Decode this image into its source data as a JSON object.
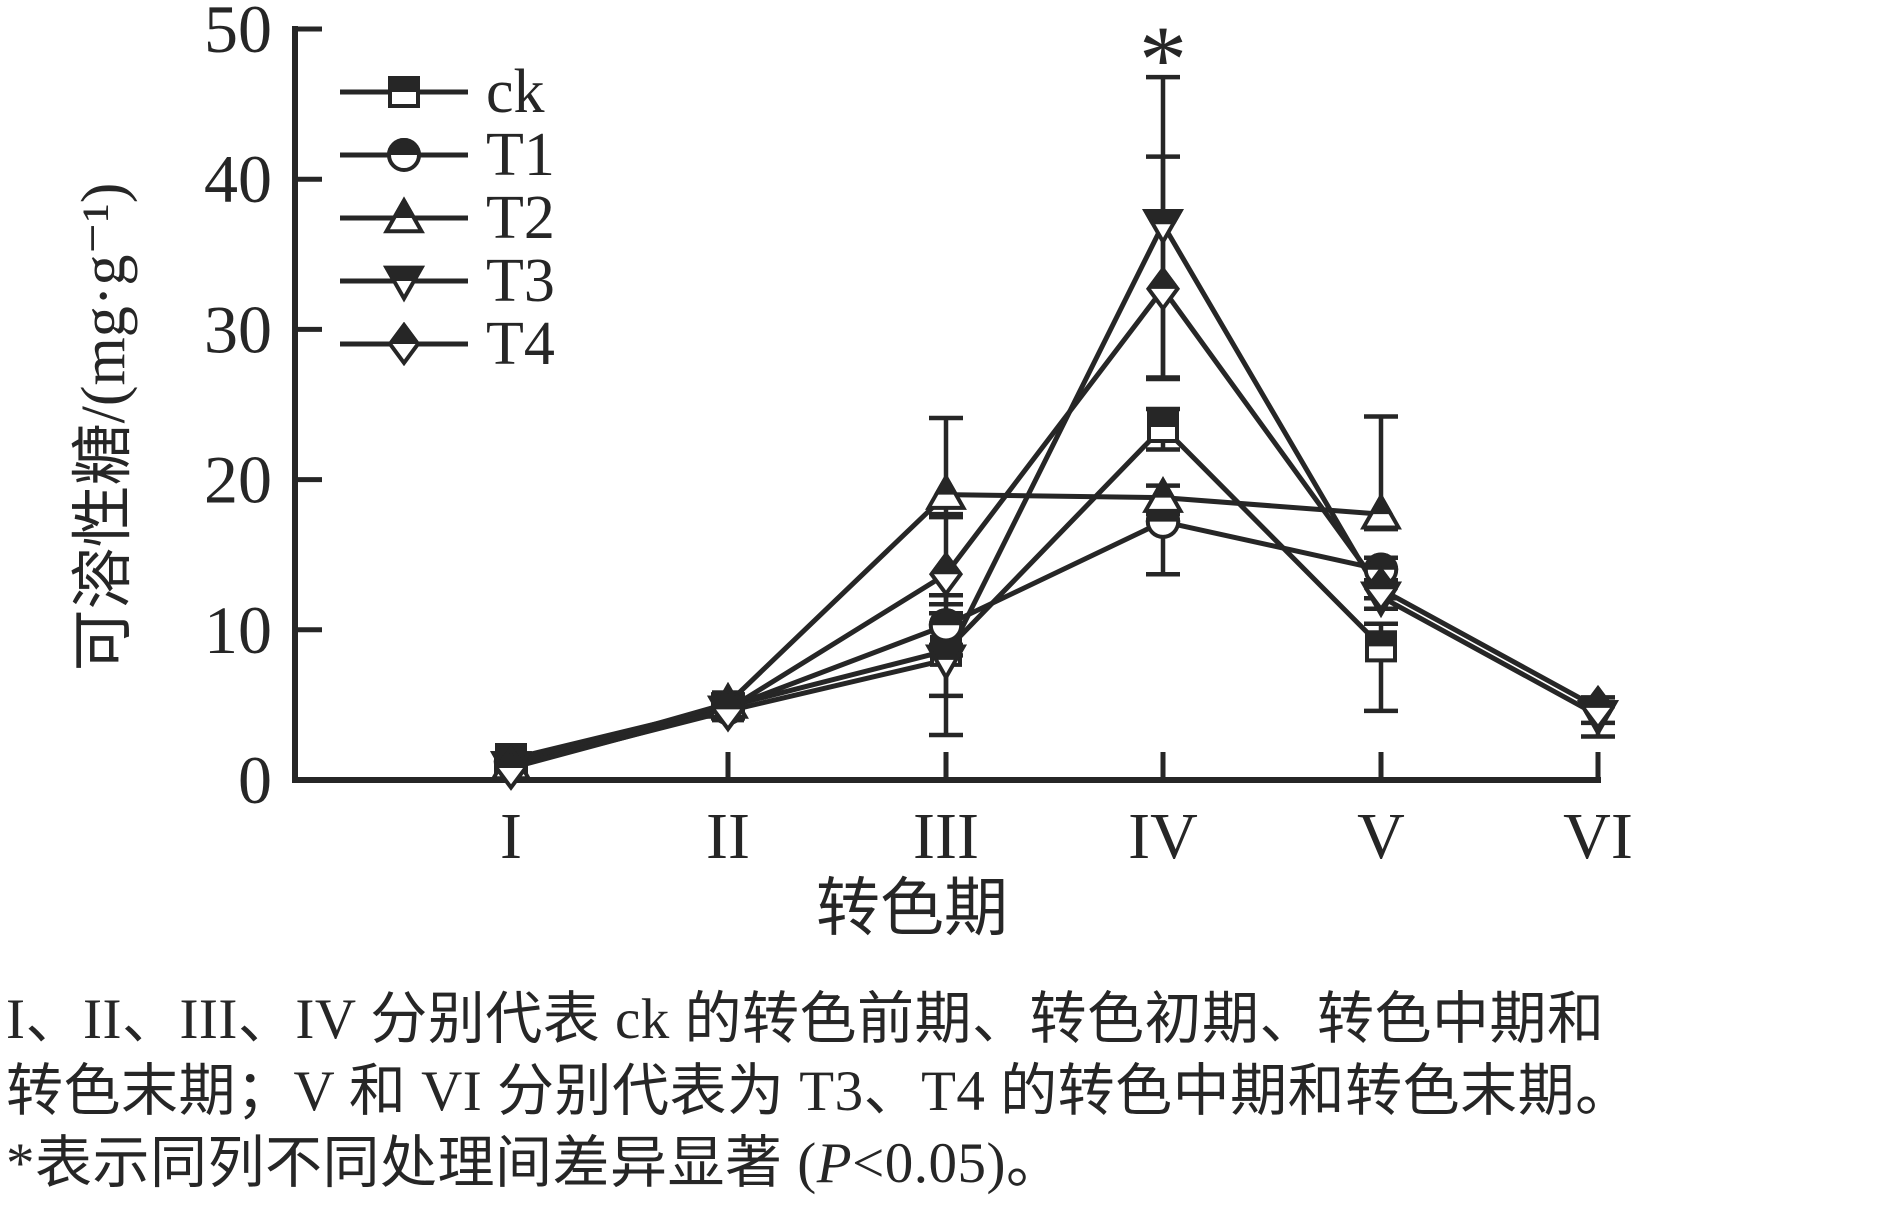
{
  "chart_data": {
    "type": "line",
    "title": "",
    "xlabel": "转色期",
    "ylabel": "可溶性糖/(mg·g⁻¹)",
    "x_categories": [
      "I",
      "II",
      "III",
      "IV",
      "V",
      "VI"
    ],
    "y_ticks": [
      0,
      10,
      20,
      30,
      40,
      50
    ],
    "ylim": [
      0,
      50
    ],
    "grid": false,
    "legend_position": "top-left-inside",
    "ink_color": "#262626",
    "error_bars": true,
    "significance": {
      "symbol": "*",
      "stage": "IV",
      "series": "T3",
      "meaning": "P<0.05"
    },
    "series": [
      {
        "name": "ck",
        "marker": "square",
        "values": [
          1.4,
          4.9,
          8.6,
          23.5,
          8.9,
          null
        ],
        "err_up": [
          0.3,
          0.5,
          2.5,
          1.2,
          1.5,
          null
        ],
        "err_down": [
          0.3,
          0.5,
          3.0,
          1.5,
          4.3,
          null
        ]
      },
      {
        "name": "T1",
        "marker": "circle",
        "values": [
          1.2,
          4.8,
          10.3,
          17.2,
          14.0,
          null
        ],
        "err_up": [
          0.3,
          0.5,
          2.0,
          0.5,
          0.8,
          null
        ],
        "err_down": [
          0.3,
          0.5,
          2.0,
          3.5,
          0.8,
          null
        ]
      },
      {
        "name": "T2",
        "marker": "triangle-up",
        "values": [
          1.0,
          5.1,
          19.0,
          18.8,
          17.7,
          null
        ],
        "err_up": [
          0.3,
          0.6,
          5.1,
          0.8,
          6.5,
          null
        ],
        "err_down": [
          0.3,
          0.6,
          1.5,
          0.8,
          1.0,
          null
        ]
      },
      {
        "name": "T3",
        "marker": "triangle-down",
        "values": [
          0.9,
          4.6,
          8.0,
          37.0,
          12.2,
          4.3
        ],
        "err_up": [
          0.3,
          0.5,
          1.0,
          9.8,
          0.8,
          0.7
        ],
        "err_down": [
          0.3,
          0.5,
          5.0,
          10.2,
          0.8,
          1.4
        ]
      },
      {
        "name": "T4",
        "marker": "diamond",
        "values": [
          0.8,
          4.7,
          13.7,
          32.7,
          12.7,
          4.8
        ],
        "err_up": [
          0.3,
          0.5,
          4.0,
          8.8,
          0.6,
          0.7
        ],
        "err_down": [
          0.3,
          0.5,
          2.0,
          6.0,
          0.6,
          1.0
        ]
      }
    ]
  },
  "caption": {
    "line1": "I、II、III、IV 分别代表 ck 的转色前期、转色初期、转色中期和",
    "line2": "转色末期；V 和 VI 分别代表为 T3、T4 的转色中期和转色末期。",
    "line3_pre": "*表示同列不同处理间差异显著 (",
    "line3_p": "P",
    "line3_post": "<0.05)。"
  }
}
